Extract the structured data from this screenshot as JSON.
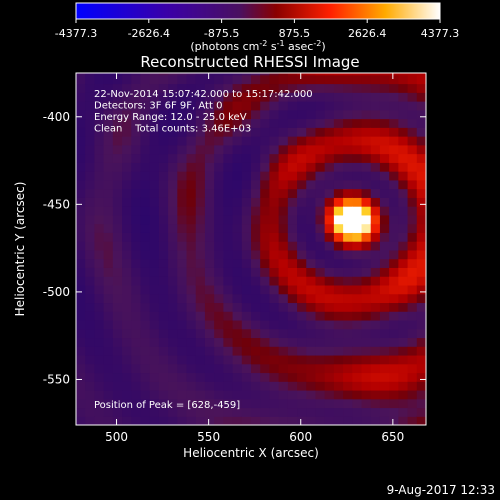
{
  "colorbar": {
    "ticks": [
      "-4377.3",
      "-2626.4",
      "-875.5",
      "875.5",
      "2626.4",
      "4377.3"
    ],
    "tick_values": [
      -4377.3,
      -2626.4,
      -875.5,
      875.5,
      2626.4,
      4377.3
    ],
    "range": [
      -4377.3,
      4377.3
    ],
    "units_prefix": "(photons cm",
    "units_exp1": "-2",
    "units_mid": " s",
    "units_exp2": "-1",
    "units_mid2": " asec",
    "units_exp3": "-2",
    "units_suffix": ")"
  },
  "chart_data": {
    "type": "heatmap",
    "title": "Reconstructed RHESSI Image",
    "xlabel": "Heliocentric X (arcsec)",
    "ylabel": "Heliocentric Y (arcsec)",
    "xlim": [
      478,
      668
    ],
    "ylim": [
      -576,
      -375
    ],
    "xticks": [
      "500",
      "550",
      "600",
      "650"
    ],
    "xtick_values": [
      500,
      550,
      600,
      650
    ],
    "yticks": [
      "-400",
      "-450",
      "-500",
      "-550"
    ],
    "ytick_values": [
      -400,
      -450,
      -500,
      -550
    ],
    "peak": {
      "x": 628,
      "y": -459
    },
    "colormap": "blue-purple-red-yellow-white",
    "annotations": [
      "22-Nov-2014 15:07:42.000 to 15:17:42.000",
      "Detectors: 3F 6F 9F, Att 0",
      "Energy Range: 12.0 - 25.0 keV",
      "Clean    Total counts: 3.46E+03"
    ],
    "peak_label": "Position of Peak = [628,-459]"
  },
  "footer": {
    "timestamp": "9-Aug-2017 12:33"
  },
  "colors": {
    "background": "#000000",
    "text": "#ffffff"
  }
}
